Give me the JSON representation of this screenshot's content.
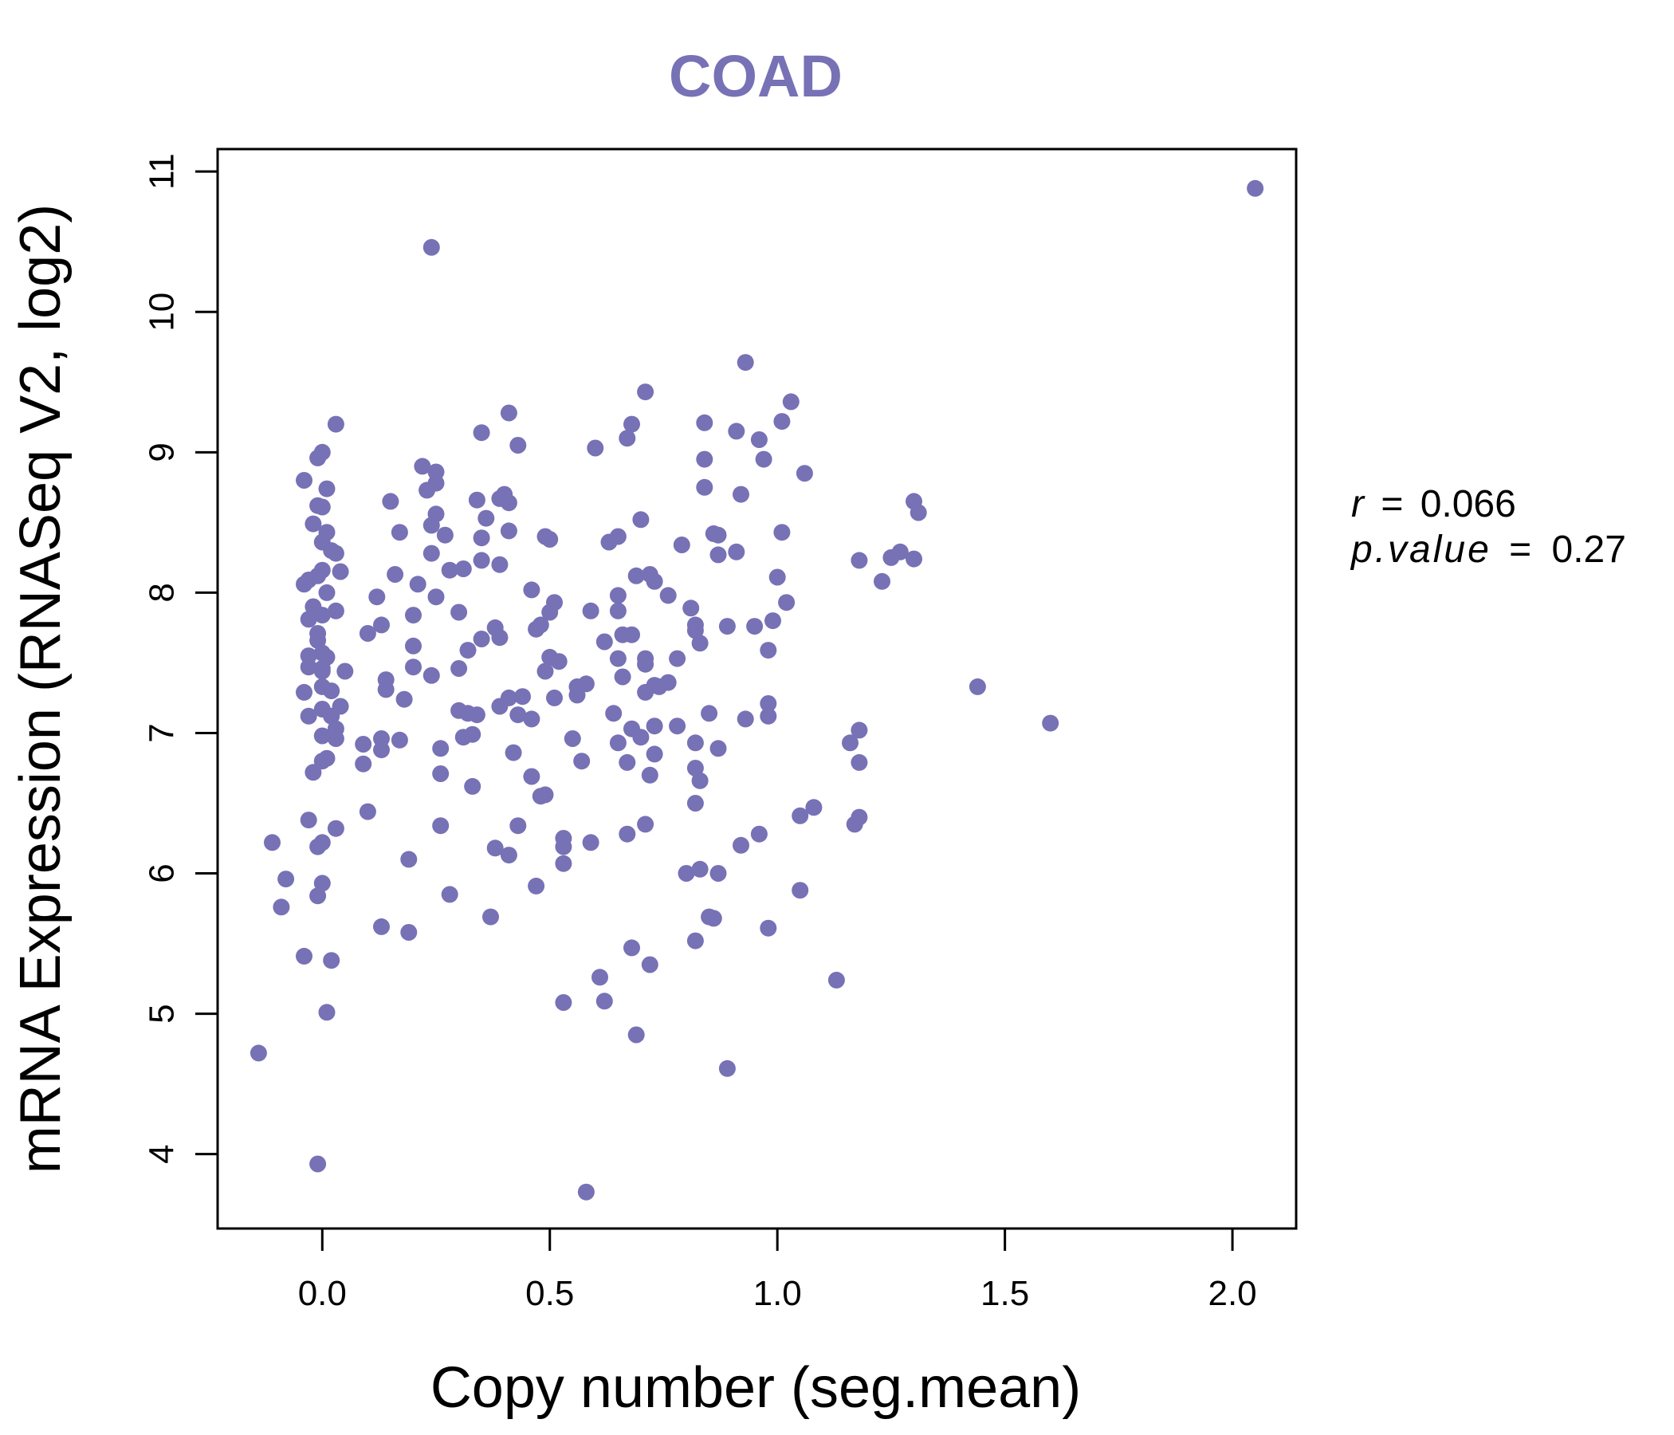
{
  "chart_data": {
    "type": "scatter",
    "title": "COAD",
    "xlabel": "Copy number (seg.mean)",
    "ylabel": "mRNA Expression (RNASeq V2, log2)",
    "xlim": [
      -0.23,
      2.14
    ],
    "ylim": [
      3.47,
      11.16
    ],
    "x_ticks": [
      0.0,
      0.5,
      1.0,
      1.5,
      2.0
    ],
    "x_tick_labels": [
      "0.0",
      "0.5",
      "1.0",
      "1.5",
      "2.0"
    ],
    "y_ticks": [
      4,
      5,
      6,
      7,
      8,
      9,
      10,
      11
    ],
    "y_tick_labels": [
      "4",
      "5",
      "6",
      "7",
      "8",
      "9",
      "10",
      "11"
    ],
    "grid": false,
    "legend": "none",
    "point_color": "#7771b5",
    "title_color": "#7771b5",
    "annotation": {
      "r_label": "r",
      "r_value": "0.066",
      "p_label": "p.value",
      "p_value": "0.27",
      "equals": "="
    },
    "points": [
      [
        2.05,
        10.88
      ],
      [
        0.24,
        10.46
      ],
      [
        0.93,
        9.64
      ],
      [
        0.71,
        9.43
      ],
      [
        1.03,
        9.36
      ],
      [
        0.41,
        9.28
      ],
      [
        0.03,
        9.2
      ],
      [
        0.68,
        9.2
      ],
      [
        0.84,
        9.21
      ],
      [
        1.01,
        9.22
      ],
      [
        0.35,
        9.14
      ],
      [
        0.91,
        9.15
      ],
      [
        0.67,
        9.1
      ],
      [
        0.96,
        9.09
      ],
      [
        0.43,
        9.05
      ],
      [
        0.6,
        9.03
      ],
      [
        0.0,
        9.0
      ],
      [
        -0.01,
        8.96
      ],
      [
        0.84,
        8.95
      ],
      [
        0.97,
        8.95
      ],
      [
        0.22,
        8.9
      ],
      [
        0.25,
        8.86
      ],
      [
        1.06,
        8.85
      ],
      [
        -0.04,
        8.8
      ],
      [
        0.25,
        8.78
      ],
      [
        0.01,
        8.74
      ],
      [
        0.23,
        8.73
      ],
      [
        0.84,
        8.75
      ],
      [
        0.4,
        8.7
      ],
      [
        0.92,
        8.7
      ],
      [
        0.34,
        8.66
      ],
      [
        0.15,
        8.65
      ],
      [
        0.39,
        8.67
      ],
      [
        0.41,
        8.64
      ],
      [
        1.3,
        8.65
      ],
      [
        -0.01,
        8.62
      ],
      [
        0.0,
        8.61
      ],
      [
        1.31,
        8.57
      ],
      [
        0.25,
        8.56
      ],
      [
        0.36,
        8.53
      ],
      [
        0.7,
        8.52
      ],
      [
        -0.02,
        8.49
      ],
      [
        0.24,
        8.48
      ],
      [
        0.41,
        8.44
      ],
      [
        0.17,
        8.43
      ],
      [
        0.01,
        8.43
      ],
      [
        0.27,
        8.41
      ],
      [
        0.87,
        8.41
      ],
      [
        1.01,
        8.43
      ],
      [
        0.49,
        8.4
      ],
      [
        0.65,
        8.4
      ],
      [
        0.86,
        8.42
      ],
      [
        0.5,
        8.38
      ],
      [
        0.0,
        8.36
      ],
      [
        0.35,
        8.39
      ],
      [
        0.63,
        8.36
      ],
      [
        0.79,
        8.34
      ],
      [
        0.02,
        8.3
      ],
      [
        0.03,
        8.28
      ],
      [
        0.24,
        8.28
      ],
      [
        0.91,
        8.29
      ],
      [
        1.27,
        8.29
      ],
      [
        0.87,
        8.27
      ],
      [
        1.25,
        8.25
      ],
      [
        0.35,
        8.23
      ],
      [
        1.18,
        8.23
      ],
      [
        1.3,
        8.24
      ],
      [
        0.39,
        8.2
      ],
      [
        0.0,
        8.16
      ],
      [
        0.04,
        8.15
      ],
      [
        0.28,
        8.16
      ],
      [
        0.31,
        8.17
      ],
      [
        0.16,
        8.13
      ],
      [
        0.69,
        8.12
      ],
      [
        0.72,
        8.13
      ],
      [
        -0.01,
        8.12
      ],
      [
        1.0,
        8.11
      ],
      [
        -0.03,
        8.09
      ],
      [
        0.73,
        8.08
      ],
      [
        1.23,
        8.08
      ],
      [
        0.21,
        8.06
      ],
      [
        -0.04,
        8.06
      ],
      [
        0.46,
        8.02
      ],
      [
        0.01,
        8.0
      ],
      [
        0.65,
        7.98
      ],
      [
        0.76,
        7.98
      ],
      [
        0.25,
        7.97
      ],
      [
        0.12,
        7.97
      ],
      [
        0.51,
        7.93
      ],
      [
        1.02,
        7.93
      ],
      [
        -0.02,
        7.9
      ],
      [
        0.81,
        7.89
      ],
      [
        0.59,
        7.87
      ],
      [
        0.65,
        7.87
      ],
      [
        0.3,
        7.86
      ],
      [
        0.5,
        7.86
      ],
      [
        0.03,
        7.87
      ],
      [
        0.0,
        7.84
      ],
      [
        0.2,
        7.84
      ],
      [
        -0.03,
        7.81
      ],
      [
        0.99,
        7.8
      ],
      [
        0.48,
        7.77
      ],
      [
        0.82,
        7.77
      ],
      [
        0.89,
        7.76
      ],
      [
        0.95,
        7.76
      ],
      [
        0.13,
        7.77
      ],
      [
        0.38,
        7.75
      ],
      [
        0.47,
        7.74
      ],
      [
        0.82,
        7.73
      ],
      [
        0.1,
        7.71
      ],
      [
        -0.01,
        7.71
      ],
      [
        0.66,
        7.7
      ],
      [
        0.68,
        7.7
      ],
      [
        0.35,
        7.67
      ],
      [
        0.39,
        7.68
      ],
      [
        -0.01,
        7.66
      ],
      [
        0.62,
        7.65
      ],
      [
        0.83,
        7.64
      ],
      [
        0.2,
        7.62
      ],
      [
        0.32,
        7.59
      ],
      [
        0.98,
        7.59
      ],
      [
        0.0,
        7.57
      ],
      [
        -0.03,
        7.55
      ],
      [
        0.01,
        7.54
      ],
      [
        0.5,
        7.54
      ],
      [
        0.65,
        7.53
      ],
      [
        0.71,
        7.53
      ],
      [
        0.78,
        7.53
      ],
      [
        0.52,
        7.51
      ],
      [
        0.71,
        7.49
      ],
      [
        0.2,
        7.47
      ],
      [
        -0.03,
        7.47
      ],
      [
        0.0,
        7.46
      ],
      [
        0.3,
        7.46
      ],
      [
        0.49,
        7.44
      ],
      [
        0.05,
        7.44
      ],
      [
        0.0,
        7.44
      ],
      [
        0.24,
        7.41
      ],
      [
        0.66,
        7.4
      ],
      [
        0.14,
        7.38
      ],
      [
        0.76,
        7.36
      ],
      [
        0.74,
        7.33
      ],
      [
        0.56,
        7.33
      ],
      [
        0.58,
        7.35
      ],
      [
        0.73,
        7.34
      ],
      [
        0.0,
        7.33
      ],
      [
        0.14,
        7.31
      ],
      [
        0.02,
        7.3
      ],
      [
        0.71,
        7.29
      ],
      [
        1.44,
        7.33
      ],
      [
        -0.04,
        7.29
      ],
      [
        0.56,
        7.27
      ],
      [
        0.44,
        7.26
      ],
      [
        0.51,
        7.25
      ],
      [
        0.41,
        7.25
      ],
      [
        0.18,
        7.24
      ],
      [
        0.98,
        7.21
      ],
      [
        0.04,
        7.19
      ],
      [
        0.39,
        7.19
      ],
      [
        0.0,
        7.17
      ],
      [
        0.3,
        7.16
      ],
      [
        0.32,
        7.14
      ],
      [
        0.34,
        7.13
      ],
      [
        0.64,
        7.14
      ],
      [
        0.85,
        7.14
      ],
      [
        0.02,
        7.12
      ],
      [
        0.43,
        7.13
      ],
      [
        -0.03,
        7.12
      ],
      [
        0.98,
        7.12
      ],
      [
        0.46,
        7.1
      ],
      [
        0.93,
        7.1
      ],
      [
        0.73,
        7.05
      ],
      [
        0.78,
        7.05
      ],
      [
        0.68,
        7.03
      ],
      [
        0.03,
        7.03
      ],
      [
        1.6,
        7.07
      ],
      [
        1.18,
        7.02
      ],
      [
        0.0,
        6.98
      ],
      [
        0.31,
        6.97
      ],
      [
        0.33,
        6.99
      ],
      [
        0.55,
        6.96
      ],
      [
        0.03,
        6.96
      ],
      [
        0.7,
        6.97
      ],
      [
        0.13,
        6.96
      ],
      [
        0.17,
        6.95
      ],
      [
        0.65,
        6.93
      ],
      [
        0.82,
        6.93
      ],
      [
        0.09,
        6.92
      ],
      [
        1.16,
        6.93
      ],
      [
        0.26,
        6.89
      ],
      [
        0.13,
        6.88
      ],
      [
        0.87,
        6.89
      ],
      [
        0.42,
        6.86
      ],
      [
        0.73,
        6.85
      ],
      [
        0.01,
        6.82
      ],
      [
        0.0,
        6.8
      ],
      [
        0.57,
        6.8
      ],
      [
        0.67,
        6.79
      ],
      [
        1.18,
        6.79
      ],
      [
        0.09,
        6.78
      ],
      [
        0.82,
        6.75
      ],
      [
        -0.02,
        6.72
      ],
      [
        0.26,
        6.71
      ],
      [
        0.72,
        6.7
      ],
      [
        0.46,
        6.69
      ],
      [
        0.83,
        6.66
      ],
      [
        0.33,
        6.62
      ],
      [
        0.49,
        6.56
      ],
      [
        0.48,
        6.55
      ],
      [
        0.82,
        6.5
      ],
      [
        1.08,
        6.47
      ],
      [
        0.1,
        6.44
      ],
      [
        1.05,
        6.41
      ],
      [
        1.18,
        6.4
      ],
      [
        -0.03,
        6.38
      ],
      [
        1.17,
        6.35
      ],
      [
        0.71,
        6.35
      ],
      [
        0.43,
        6.34
      ],
      [
        0.26,
        6.34
      ],
      [
        0.03,
        6.32
      ],
      [
        0.67,
        6.28
      ],
      [
        0.96,
        6.28
      ],
      [
        0.53,
        6.25
      ],
      [
        -0.11,
        6.22
      ],
      [
        0.0,
        6.22
      ],
      [
        0.59,
        6.22
      ],
      [
        -0.01,
        6.19
      ],
      [
        0.53,
        6.19
      ],
      [
        0.92,
        6.2
      ],
      [
        0.38,
        6.18
      ],
      [
        0.41,
        6.13
      ],
      [
        0.19,
        6.1
      ],
      [
        0.53,
        6.07
      ],
      [
        0.83,
        6.03
      ],
      [
        0.8,
        6.0
      ],
      [
        0.87,
        6.0
      ],
      [
        -0.08,
        5.96
      ],
      [
        0.0,
        5.93
      ],
      [
        0.47,
        5.91
      ],
      [
        1.05,
        5.88
      ],
      [
        0.28,
        5.85
      ],
      [
        -0.01,
        5.84
      ],
      [
        -0.09,
        5.76
      ],
      [
        0.37,
        5.69
      ],
      [
        0.85,
        5.69
      ],
      [
        0.86,
        5.68
      ],
      [
        0.13,
        5.62
      ],
      [
        0.98,
        5.61
      ],
      [
        0.19,
        5.58
      ],
      [
        0.82,
        5.52
      ],
      [
        0.68,
        5.47
      ],
      [
        -0.04,
        5.41
      ],
      [
        0.02,
        5.38
      ],
      [
        0.72,
        5.35
      ],
      [
        0.61,
        5.26
      ],
      [
        1.13,
        5.24
      ],
      [
        0.53,
        5.08
      ],
      [
        0.62,
        5.09
      ],
      [
        0.01,
        5.01
      ],
      [
        0.69,
        4.85
      ],
      [
        -0.14,
        4.72
      ],
      [
        0.89,
        4.61
      ],
      [
        -0.01,
        3.93
      ],
      [
        0.58,
        3.73
      ]
    ]
  }
}
